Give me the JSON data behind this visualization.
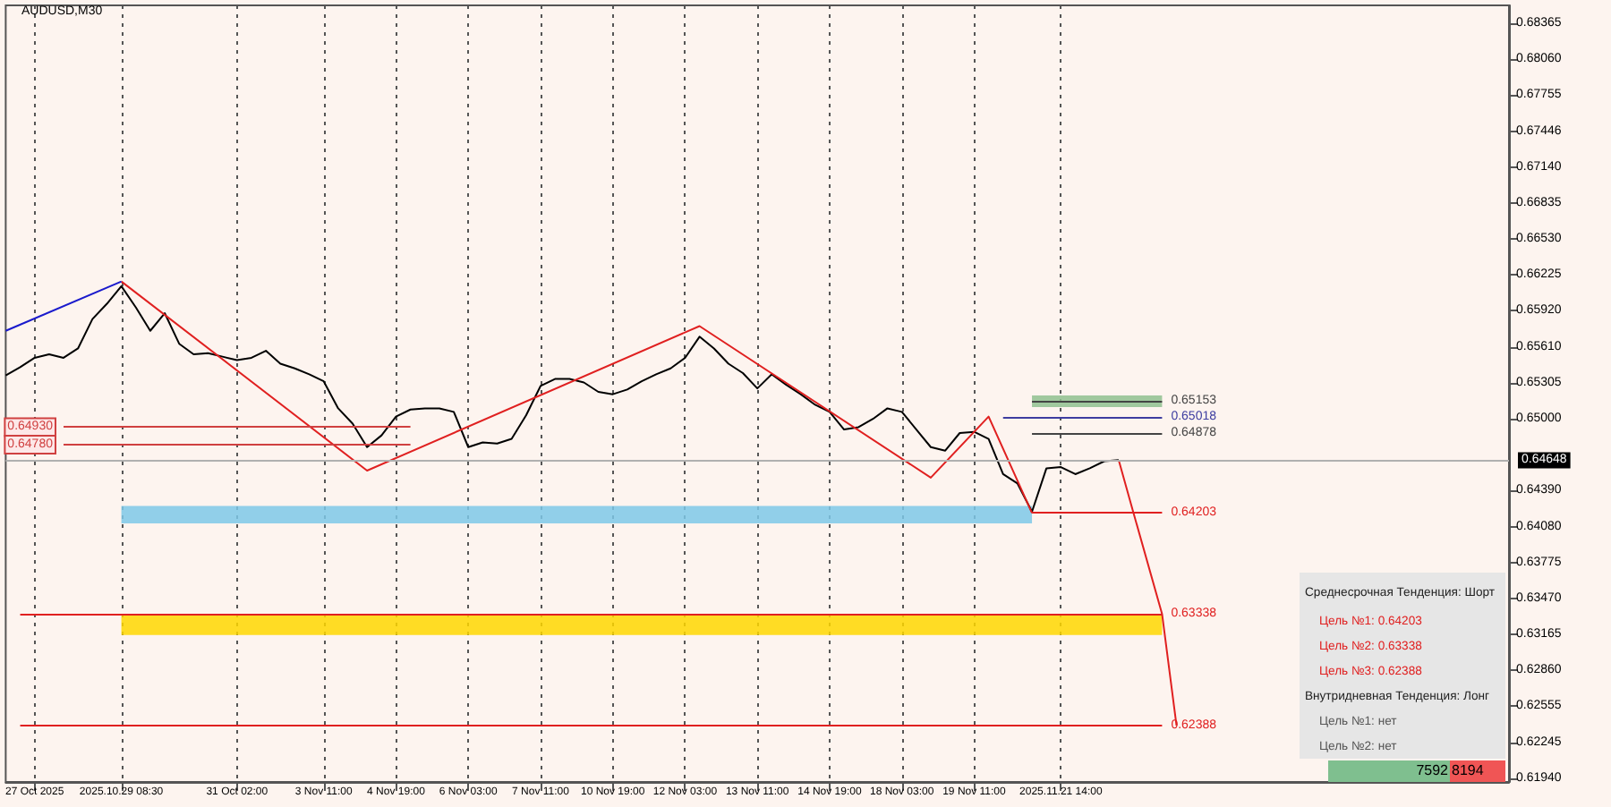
{
  "chart_data": {
    "type": "line",
    "grid": "x",
    "marker": "none",
    "line_style": "solid",
    "categories": [
      null,
      null,
      "27 Oct 2025",
      null,
      null,
      null,
      null,
      null,
      "2025.10.29 08:30",
      null,
      null,
      null,
      null,
      null,
      null,
      null,
      "31 Oct 02:00",
      null,
      null,
      null,
      null,
      null,
      "3 Nov 11:00",
      null,
      null,
      null,
      null,
      "4 Nov 19:00",
      null,
      null,
      null,
      null,
      "6 Nov 03:00",
      null,
      null,
      null,
      null,
      "7 Nov 11:00",
      null,
      null,
      null,
      null,
      "10 Nov 19:00",
      null,
      null,
      null,
      null,
      "12 Nov 03:00",
      null,
      null,
      null,
      null,
      "13 Nov 11:00",
      null,
      null,
      null,
      null,
      "14 Nov 19:00",
      null,
      null,
      null,
      null,
      "18 Nov 03:00",
      null,
      null,
      null,
      null,
      "19 Nov 11:00",
      null,
      null,
      null,
      null,
      null,
      "2025.11.21 14:00",
      null,
      null,
      null,
      null,
      null,
      null,
      null,
      null,
      null,
      null,
      null,
      null,
      null,
      null,
      null,
      null,
      null,
      null,
      null,
      null,
      null,
      null,
      null,
      null,
      null,
      null,
      null,
      null,
      null,
      null,
      null
    ],
    "series": [
      {
        "color": "#000000",
        "values": [
          0.6537,
          0.6544,
          0.6552,
          0.6555,
          0.6552,
          0.656,
          0.6585,
          0.6598,
          0.6613,
          0.6595,
          0.6575,
          0.659,
          0.6564,
          0.6555,
          0.6556,
          0.6553,
          0.655,
          0.6552,
          0.6558,
          0.6547,
          0.6543,
          0.6538,
          0.6532,
          0.6509,
          0.6496,
          0.6476,
          0.6486,
          0.6502,
          0.6508,
          0.6509,
          0.6509,
          0.6506,
          0.6476,
          0.648,
          0.6479,
          0.6483,
          0.6503,
          0.6528,
          0.6534,
          0.6534,
          0.6531,
          0.6523,
          0.6521,
          0.6525,
          0.6532,
          0.6538,
          0.6543,
          0.6552,
          0.657,
          0.656,
          0.6547,
          0.6539,
          0.6526,
          0.6538,
          0.6529,
          0.6521,
          0.6512,
          0.6506,
          0.6491,
          0.6493,
          0.65,
          0.6509,
          0.6506,
          0.6491,
          0.6476,
          0.6473,
          0.6488,
          0.6489,
          0.6483,
          0.6453,
          0.6445,
          0.6421,
          0.6458,
          0.6459,
          0.6453,
          0.6458,
          0.6464,
          0.6465,
          null,
          null,
          null,
          null,
          null,
          null,
          null,
          null,
          null,
          null,
          null,
          null,
          null,
          null,
          null,
          null,
          null,
          null,
          null,
          null,
          null,
          null,
          null,
          null,
          null,
          null,
          null
        ]
      },
      {
        "color": "#e02020",
        "values": [
          null,
          null,
          null,
          null,
          null,
          null,
          null,
          null,
          0.6617,
          null,
          null,
          null,
          null,
          null,
          null,
          null,
          null,
          null,
          null,
          null,
          null,
          null,
          null,
          null,
          null,
          0.6456,
          null,
          null,
          null,
          null,
          null,
          null,
          null,
          null,
          null,
          null,
          null,
          null,
          null,
          null,
          null,
          null,
          null,
          null,
          null,
          null,
          null,
          null,
          0.6579,
          null,
          null,
          null,
          null,
          null,
          null,
          null,
          null,
          null,
          null,
          null,
          null,
          null,
          null,
          null,
          0.645,
          null,
          null,
          null,
          0.6502,
          null,
          null,
          0.642,
          null,
          null,
          null,
          null,
          null,
          null,
          null,
          null,
          null,
          null,
          null,
          null,
          null,
          null,
          null,
          null,
          null,
          null,
          null,
          null,
          null,
          null,
          null,
          null,
          null,
          null,
          null,
          null,
          null,
          null,
          null,
          null,
          null
        ]
      },
      {
        "color": "#1a1acc",
        "values": [
          0.6575,
          null,
          null,
          null,
          null,
          null,
          null,
          null,
          0.6617,
          null,
          null,
          null,
          null,
          null,
          null,
          null,
          null,
          null,
          null,
          null,
          null,
          null,
          null,
          null,
          null,
          null,
          null,
          null,
          null,
          null,
          null,
          null,
          null,
          null,
          null,
          null,
          null,
          null,
          null,
          null,
          null,
          null,
          null,
          null,
          null,
          null,
          null,
          null,
          null,
          null,
          null,
          null,
          null,
          null,
          null,
          null,
          null,
          null,
          null,
          null,
          null,
          null,
          null,
          null,
          null,
          null,
          null,
          null,
          null,
          null,
          null,
          null,
          null,
          null,
          null,
          null,
          null,
          null,
          null,
          null,
          null,
          null,
          null,
          null,
          null,
          null,
          null,
          null,
          null,
          null,
          null,
          null,
          null,
          null,
          null,
          null,
          null,
          null,
          null,
          null,
          null,
          null,
          null,
          null,
          null
        ]
      },
      {
        "color": "#e02020",
        "values": [
          null,
          null,
          null,
          null,
          null,
          null,
          null,
          null,
          null,
          null,
          null,
          null,
          null,
          null,
          null,
          null,
          null,
          null,
          null,
          null,
          null,
          null,
          null,
          null,
          null,
          null,
          null,
          null,
          null,
          null,
          null,
          null,
          null,
          null,
          null,
          null,
          null,
          null,
          null,
          null,
          null,
          null,
          null,
          null,
          null,
          null,
          null,
          null,
          null,
          null,
          null,
          null,
          null,
          null,
          null,
          null,
          null,
          null,
          null,
          null,
          null,
          null,
          null,
          null,
          null,
          null,
          null,
          null,
          null,
          null,
          null,
          null,
          null,
          null,
          null,
          null,
          null,
          0.6465,
          0.6421,
          null,
          0.6334,
          0.6239,
          null,
          null,
          null,
          null,
          null,
          null,
          null,
          null,
          null,
          null,
          null,
          null,
          null,
          null,
          null,
          null,
          null,
          null,
          null,
          null,
          null,
          null,
          null
        ]
      }
    ],
    "ylim": [
      0.6191,
      0.6852
    ],
    "yticks": [
      0.68365,
      {
        "value": 0.6806,
        "label": "0.68060"
      },
      0.67755,
      0.67446,
      {
        "value": 0.6714,
        "label": "0.67140"
      },
      0.66835,
      {
        "value": 0.6653,
        "label": "0.66530"
      },
      0.66225,
      {
        "value": 0.6592,
        "label": "0.65920"
      },
      {
        "value": 0.6561,
        "label": "0.65610"
      },
      0.65305,
      {
        "value": 0.65,
        "label": "0.65000"
      },
      {
        "value": 0.6439,
        "label": "0.64390"
      },
      {
        "value": 0.6408,
        "label": "0.64080"
      },
      0.63775,
      {
        "value": 0.6347,
        "label": "0.63470"
      },
      0.63165,
      {
        "value": 0.6286,
        "label": "0.62860"
      },
      0.62555,
      0.62245,
      {
        "value": 0.6194,
        "label": "0.61940"
      }
    ],
    "ref_lines": [
      {
        "axis": "y",
        "value": 0.65153,
        "label": "0.65153",
        "color": "#444444"
      },
      {
        "axis": "y",
        "value": 0.65018,
        "label": "0.65018",
        "color": "#3d3da0"
      },
      {
        "axis": "y",
        "value": 0.64878,
        "label": "0.64878",
        "color": "#444444"
      },
      {
        "axis": "y",
        "value": 0.64203,
        "label": "0.64203",
        "color": "#e02020"
      },
      {
        "axis": "y",
        "value": 0.63338,
        "label": "0.63338",
        "color": "#e02020"
      },
      {
        "axis": "y",
        "value": 0.62388,
        "label": "0.62388",
        "color": "#e02020"
      },
      {
        "axis": "y",
        "value": 0.6493,
        "label": "0.64930",
        "color": "#d04040"
      },
      {
        "axis": "y",
        "value": 0.6478,
        "label": "0.64780",
        "color": "#d04040"
      },
      {
        "axis": "y",
        "value": 0.64648,
        "label": "0.64648",
        "color": "#b0b0b0"
      }
    ],
    "bands": [
      {
        "axis": "y",
        "from": 0.6411,
        "to": 0.6426,
        "color": "#7ec8e8"
      },
      {
        "axis": "y",
        "from": 0.6316,
        "to": 0.6334,
        "color": "#ffd700"
      },
      {
        "axis": "y",
        "from": 0.651,
        "to": 0.652,
        "color": "#8fbf8f"
      }
    ],
    "annotations": [
      "AUDUSD,M30",
      "Среднесрочная Тенденция: Шорт",
      "Цель №1: 0.64203",
      "Цель №2: 0.63338",
      "Цель №3: 0.62388",
      "Внутридневная Тенденция: Лонг",
      "Цель №1: нет",
      "Цель №2: нет",
      "7592",
      "8194"
    ]
  }
}
